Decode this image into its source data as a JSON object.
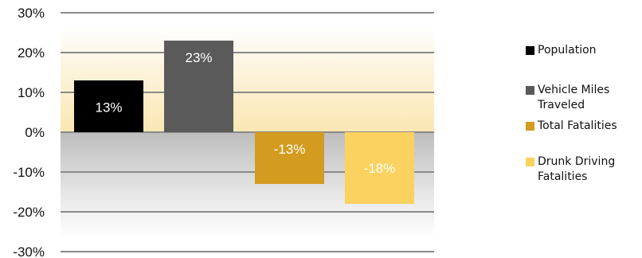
{
  "chart_data": {
    "type": "bar",
    "categories": [
      "Population",
      "Vehicle Miles Traveled",
      "Total Fatalities",
      "Drunk Driving Fatalities"
    ],
    "values": [
      13,
      23,
      -13,
      -18
    ],
    "value_labels": [
      "13%",
      "23%",
      "-13%",
      "-18%"
    ],
    "colors": [
      "#000000",
      "#5a5a5a",
      "#d39b20",
      "#fbd160"
    ],
    "label_colors": [
      "#ffffff",
      "#ffffff",
      "#ffffff",
      "#ffffff"
    ],
    "yticks": [
      "30%",
      "20%",
      "10%",
      "0%",
      "-10%",
      "-20%",
      "-30%"
    ],
    "ylim": [
      -30,
      30
    ],
    "grid": true,
    "legend_position": "right",
    "title": "",
    "xlabel": "",
    "ylabel": ""
  },
  "legend": [
    {
      "label": "Population",
      "color": "#000000"
    },
    {
      "label": "Vehicle Miles Traveled",
      "color": "#5a5a5a"
    },
    {
      "label": "Total Fatalities",
      "color": "#d39b20"
    },
    {
      "label": "Drunk Driving Fatalities",
      "color": "#fbd160"
    }
  ]
}
